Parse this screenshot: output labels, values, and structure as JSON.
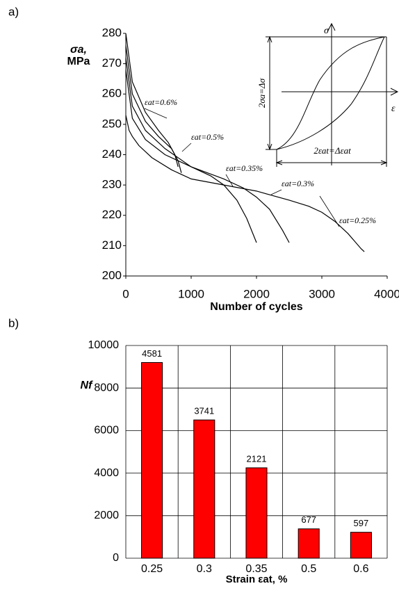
{
  "chart_data": [
    {
      "type": "line",
      "label": "a)",
      "xlabel": "Number of cycles",
      "ylabel": [
        "σa,",
        "MPa"
      ],
      "xlim": [
        0,
        4000
      ],
      "xticks": [
        0,
        1000,
        2000,
        3000,
        4000
      ],
      "ylim": [
        200,
        280
      ],
      "yticks": [
        200,
        210,
        220,
        230,
        240,
        250,
        260,
        270,
        280
      ],
      "series": [
        {
          "name": "εat=0.6%",
          "color": "#000000",
          "x": [
            0,
            100,
            300,
            500,
            650,
            750,
            800
          ],
          "values": [
            280,
            264,
            254,
            248,
            244,
            240,
            236
          ]
        },
        {
          "name": "εat=0.5%",
          "color": "#000000",
          "x": [
            0,
            100,
            300,
            500,
            700,
            800,
            850
          ],
          "values": [
            276,
            260,
            251,
            246,
            242,
            238,
            234
          ]
        },
        {
          "name": "εat=0.35%",
          "color": "#000000",
          "x": [
            0,
            100,
            300,
            600,
            1000,
            1300,
            1500,
            1700,
            1850,
            2000
          ],
          "values": [
            272,
            256,
            248,
            242,
            236,
            233,
            230,
            225,
            219,
            211
          ]
        },
        {
          "name": "εat=0.3%",
          "color": "#000000",
          "x": [
            0,
            100,
            300,
            600,
            1000,
            1500,
            1800,
            2000,
            2200,
            2400,
            2500
          ],
          "values": [
            268,
            252,
            245,
            240,
            236,
            232,
            229,
            226,
            222,
            215,
            211
          ]
        },
        {
          "name": "εat=0.25%",
          "color": "#000000",
          "x": [
            0,
            50,
            100,
            200,
            400,
            700,
            1000,
            1500,
            2000,
            2500,
            2800,
            3000,
            3200,
            3400,
            3600,
            3650
          ],
          "values": [
            253,
            248,
            246,
            243,
            239,
            235,
            232,
            230,
            228,
            225,
            223,
            221,
            218,
            214,
            209,
            208
          ]
        }
      ],
      "inset": {
        "stress": "σ",
        "strain": "ε",
        "stress_range": "2σa=Δσ",
        "strain_range": "2εat=Δεat"
      }
    },
    {
      "type": "bar",
      "label": "b)",
      "xlabel": "Strain εat, %",
      "ylabel": "Nf",
      "categories": [
        "0.25",
        "0.3",
        "0.35",
        "0.5",
        "0.6"
      ],
      "values": [
        9200,
        6500,
        4250,
        1380,
        1220
      ],
      "annotations": [
        "4581",
        "3741",
        "2121",
        "677",
        "597"
      ],
      "color": "#ff0000",
      "ylim": [
        0,
        10000
      ],
      "yticks": [
        0,
        2000,
        4000,
        6000,
        8000,
        10000
      ],
      "grid": true
    }
  ]
}
